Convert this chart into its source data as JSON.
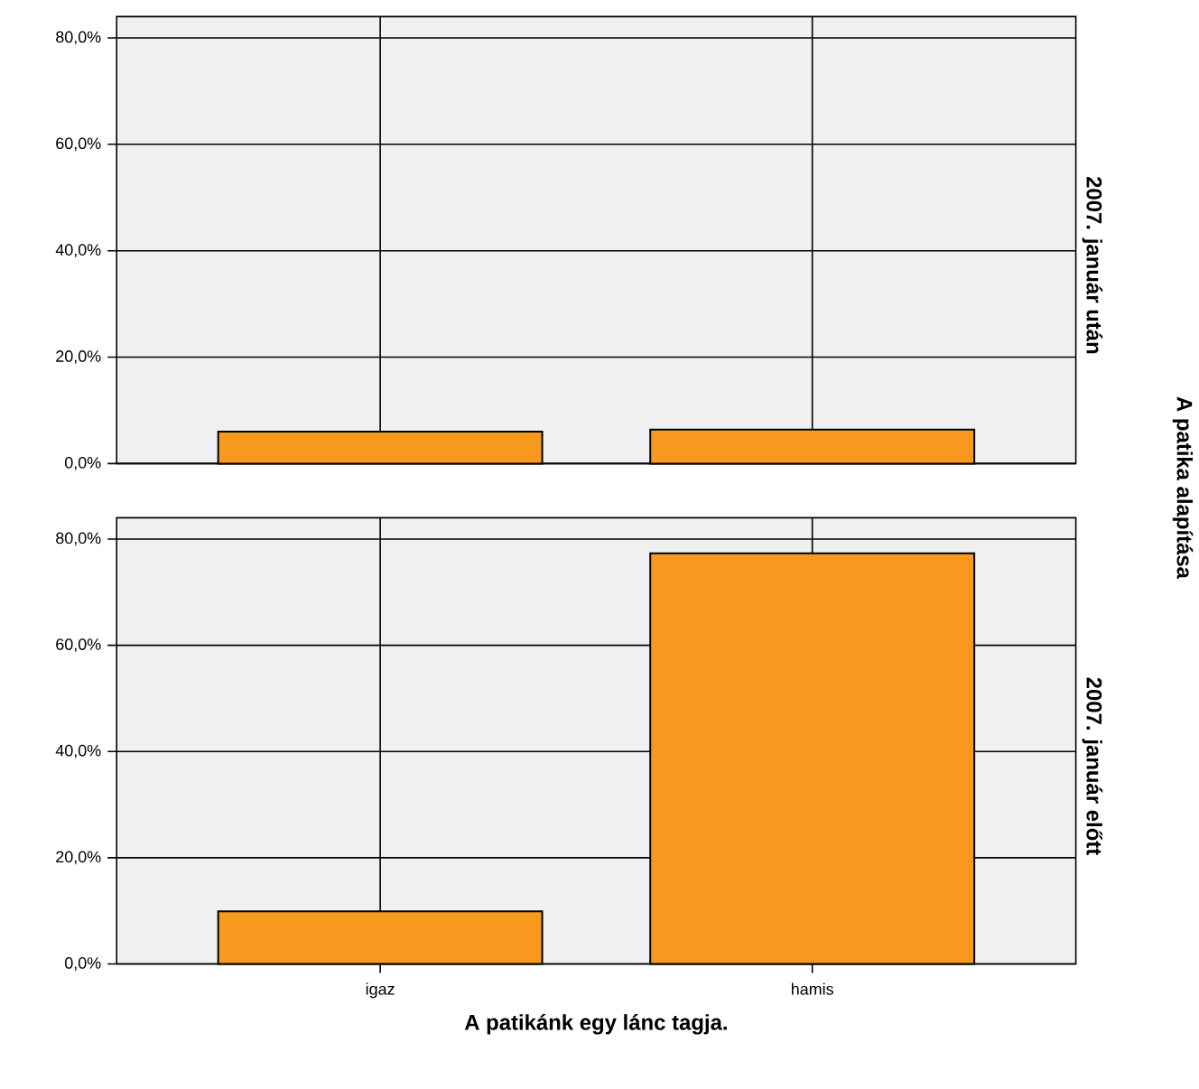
{
  "chart_data": [
    {
      "type": "bar",
      "title": "2007. január után",
      "y2label": "A patika alapítása",
      "categories": [
        null,
        null
      ],
      "values": [
        6.0,
        6.4
      ],
      "color": "#f7991f",
      "ylim": [
        0,
        84
      ],
      "yticks": [
        {
          "value": 0,
          "label": "0,0%"
        },
        {
          "value": 20,
          "label": "20,0%"
        },
        {
          "value": 40,
          "label": "40,0%"
        },
        {
          "value": 60,
          "label": "60,0%"
        },
        {
          "value": 80,
          "label": "80,0%"
        }
      ],
      "grid": true,
      "tick_labels": "y"
    },
    {
      "type": "bar",
      "title": "2007. január előtt",
      "xlabel": "A patikánk egy lánc tagja.",
      "categories": [
        "igaz",
        "hamis"
      ],
      "values": [
        9.9,
        77.3
      ],
      "color": "#f7991f",
      "ylim": [
        0,
        84
      ],
      "yticks": [
        {
          "value": 0,
          "label": "0,0%"
        },
        {
          "value": 20,
          "label": "20,0%"
        },
        {
          "value": 40,
          "label": "40,0%"
        },
        {
          "value": 60,
          "label": "60,0%"
        },
        {
          "value": 80,
          "label": "80,0%"
        }
      ],
      "grid": true
    }
  ]
}
